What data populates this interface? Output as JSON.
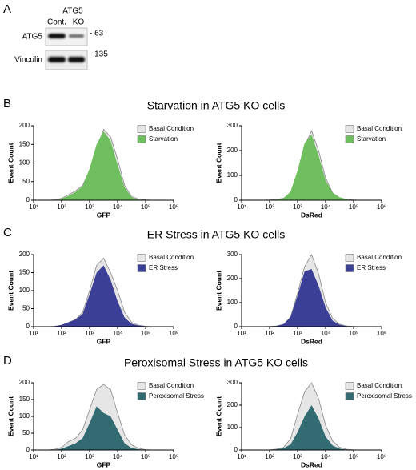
{
  "figure": {
    "panel_a": {
      "label": "A",
      "header": "ATG5",
      "lanes": [
        "Cont.",
        "KO"
      ],
      "rows": [
        "ATG5",
        "Vinculin"
      ],
      "markers": [
        "- 63",
        "- 135"
      ]
    },
    "sections": [
      {
        "label": "B",
        "title": "Starvation in ATG5 KO cells"
      },
      {
        "label": "C",
        "title": "ER Stress in ATG5 KO cells"
      },
      {
        "label": "D",
        "title": "Peroxisomal Stress in ATG5 KO cells"
      }
    ]
  },
  "chart_data": [
    {
      "type": "area",
      "xlabel": "GFP",
      "ylabel": "Event Count",
      "xscale": "log",
      "x": [
        31.6,
        56.2,
        100,
        177.8,
        316.2,
        562.3,
        1000,
        1778.3,
        3162.3,
        5623.4,
        10000,
        17782.8,
        31622.8,
        56234.1,
        100000,
        177827.9,
        316227.8
      ],
      "xlim": [
        10,
        1000000
      ],
      "xticks": [
        {
          "value": 10,
          "label": "10¹"
        },
        {
          "value": 100,
          "label": "10²"
        },
        {
          "value": 1000,
          "label": "10³"
        },
        {
          "value": 10000,
          "label": "10⁴"
        },
        {
          "value": 100000,
          "label": "10⁵"
        },
        {
          "value": 1000000,
          "label": "10⁶"
        }
      ],
      "ylim": [
        0,
        200
      ],
      "yticks": [
        0,
        50,
        100,
        150,
        200
      ],
      "legend": "top-right",
      "series": [
        {
          "name": "Basal Condition",
          "color": "#e6e6e6",
          "values": [
            0,
            1,
            5,
            15,
            25,
            40,
            80,
            140,
            190,
            170,
            110,
            40,
            10,
            3,
            1,
            0,
            0
          ]
        },
        {
          "name": "Starvation",
          "color": "#6fbf5f",
          "values": [
            0,
            1,
            4,
            12,
            22,
            38,
            85,
            150,
            185,
            160,
            95,
            35,
            8,
            2,
            1,
            0,
            0
          ]
        }
      ]
    },
    {
      "type": "area",
      "xlabel": "DsRed",
      "ylabel": "Event Count",
      "xscale": "log",
      "x": [
        31.6,
        56.2,
        100,
        177.8,
        316.2,
        562.3,
        1000,
        1778.3,
        3162.3,
        5623.4,
        10000,
        17782.8,
        31622.8,
        56234.1,
        100000,
        177827.9,
        316227.8
      ],
      "xlim": [
        10,
        1000000
      ],
      "xticks": [
        {
          "value": 10,
          "label": "10¹"
        },
        {
          "value": 100,
          "label": "10²"
        },
        {
          "value": 1000,
          "label": "10³"
        },
        {
          "value": 10000,
          "label": "10⁴"
        },
        {
          "value": 100000,
          "label": "10⁵"
        },
        {
          "value": 1000000,
          "label": "10⁶"
        }
      ],
      "ylim": [
        0,
        300
      ],
      "yticks": [
        0,
        100,
        200,
        300
      ],
      "legend": "top-right",
      "series": [
        {
          "name": "Basal Condition",
          "color": "#e6e6e6",
          "values": [
            0,
            0,
            1,
            3,
            8,
            30,
            110,
            220,
            280,
            200,
            90,
            30,
            10,
            3,
            1,
            0,
            0
          ]
        },
        {
          "name": "Starvation",
          "color": "#6fbf5f",
          "values": [
            0,
            0,
            1,
            3,
            8,
            35,
            120,
            230,
            265,
            180,
            80,
            30,
            12,
            4,
            1,
            0,
            0
          ]
        }
      ]
    },
    {
      "type": "area",
      "xlabel": "GFP",
      "ylabel": "Event Count",
      "xscale": "log",
      "x": [
        31.6,
        56.2,
        100,
        177.8,
        316.2,
        562.3,
        1000,
        1778.3,
        3162.3,
        5623.4,
        10000,
        17782.8,
        31622.8,
        56234.1,
        100000,
        177827.9,
        316227.8
      ],
      "xlim": [
        10,
        1000000
      ],
      "xticks": [
        {
          "value": 10,
          "label": "10¹"
        },
        {
          "value": 100,
          "label": "10²"
        },
        {
          "value": 1000,
          "label": "10³"
        },
        {
          "value": 10000,
          "label": "10⁴"
        },
        {
          "value": 100000,
          "label": "10⁵"
        },
        {
          "value": 1000000,
          "label": "10⁶"
        }
      ],
      "ylim": [
        0,
        200
      ],
      "yticks": [
        0,
        50,
        100,
        150,
        200
      ],
      "legend": "top-right",
      "series": [
        {
          "name": "Basal Condition",
          "color": "#e6e6e6",
          "values": [
            0,
            1,
            4,
            12,
            20,
            40,
            100,
            170,
            190,
            150,
            100,
            40,
            12,
            4,
            1,
            0,
            0
          ]
        },
        {
          "name": "ER Stress",
          "color": "#3b3f95",
          "values": [
            0,
            1,
            5,
            12,
            20,
            35,
            90,
            150,
            170,
            130,
            70,
            25,
            8,
            3,
            1,
            0,
            0
          ]
        }
      ]
    },
    {
      "type": "area",
      "xlabel": "DsRed",
      "ylabel": "Event Count",
      "xscale": "log",
      "x": [
        31.6,
        56.2,
        100,
        177.8,
        316.2,
        562.3,
        1000,
        1778.3,
        3162.3,
        5623.4,
        10000,
        17782.8,
        31622.8,
        56234.1,
        100000,
        177827.9,
        316227.8
      ],
      "xlim": [
        10,
        1000000
      ],
      "xticks": [
        {
          "value": 10,
          "label": "10¹"
        },
        {
          "value": 100,
          "label": "10²"
        },
        {
          "value": 1000,
          "label": "10³"
        },
        {
          "value": 10000,
          "label": "10⁴"
        },
        {
          "value": 100000,
          "label": "10⁵"
        },
        {
          "value": 1000000,
          "label": "10⁶"
        }
      ],
      "ylim": [
        0,
        300
      ],
      "yticks": [
        0,
        100,
        200,
        300
      ],
      "legend": "top-right",
      "series": [
        {
          "name": "Basal Condition",
          "color": "#e6e6e6",
          "values": [
            0,
            0,
            1,
            3,
            10,
            40,
            140,
            250,
            300,
            220,
            100,
            35,
            10,
            3,
            1,
            0,
            0
          ]
        },
        {
          "name": "ER Stress",
          "color": "#3b3f95",
          "values": [
            0,
            0,
            1,
            3,
            10,
            40,
            130,
            230,
            240,
            170,
            80,
            25,
            8,
            2,
            1,
            0,
            0
          ]
        }
      ]
    },
    {
      "type": "area",
      "xlabel": "GFP",
      "ylabel": "Event Count",
      "xscale": "log",
      "x": [
        31.6,
        56.2,
        100,
        177.8,
        316.2,
        562.3,
        1000,
        1778.3,
        3162.3,
        5623.4,
        10000,
        17782.8,
        31622.8,
        56234.1,
        100000,
        177827.9,
        316227.8
      ],
      "xlim": [
        10,
        1000000
      ],
      "xticks": [
        {
          "value": 10,
          "label": "10¹"
        },
        {
          "value": 100,
          "label": "10²"
        },
        {
          "value": 1000,
          "label": "10³"
        },
        {
          "value": 10000,
          "label": "10⁴"
        },
        {
          "value": 100000,
          "label": "10⁵"
        },
        {
          "value": 1000000,
          "label": "10⁶"
        }
      ],
      "ylim": [
        0,
        200
      ],
      "yticks": [
        0,
        50,
        100,
        150,
        200
      ],
      "legend": "top-right",
      "series": [
        {
          "name": "Basal Condition",
          "color": "#e6e6e6",
          "values": [
            0,
            2,
            8,
            25,
            35,
            60,
            120,
            180,
            195,
            180,
            110,
            45,
            15,
            5,
            1,
            0,
            0
          ]
        },
        {
          "name": "Peroxisomal Stress",
          "color": "#336b73",
          "values": [
            0,
            1,
            4,
            12,
            20,
            35,
            80,
            130,
            110,
            100,
            60,
            20,
            6,
            2,
            1,
            0,
            0
          ]
        }
      ]
    },
    {
      "type": "area",
      "xlabel": "DsRed",
      "ylabel": "Event Count",
      "xscale": "log",
      "x": [
        31.6,
        56.2,
        100,
        177.8,
        316.2,
        562.3,
        1000,
        1778.3,
        3162.3,
        5623.4,
        10000,
        17782.8,
        31622.8,
        56234.1,
        100000,
        177827.9,
        316227.8
      ],
      "xlim": [
        10,
        1000000
      ],
      "xticks": [
        {
          "value": 10,
          "label": "10¹"
        },
        {
          "value": 100,
          "label": "10²"
        },
        {
          "value": 1000,
          "label": "10³"
        },
        {
          "value": 10000,
          "label": "10⁴"
        },
        {
          "value": 100000,
          "label": "10⁵"
        },
        {
          "value": 1000000,
          "label": "10⁶"
        }
      ],
      "ylim": [
        0,
        300
      ],
      "yticks": [
        0,
        100,
        200,
        300
      ],
      "legend": "top-right",
      "series": [
        {
          "name": "Basal Condition",
          "color": "#e6e6e6",
          "values": [
            0,
            0,
            1,
            4,
            12,
            50,
            160,
            260,
            300,
            230,
            110,
            40,
            12,
            3,
            1,
            0,
            0
          ]
        },
        {
          "name": "Peroxisomal Stress",
          "color": "#336b73",
          "values": [
            0,
            0,
            1,
            3,
            8,
            25,
            80,
            150,
            200,
            140,
            60,
            20,
            6,
            2,
            0,
            0,
            0
          ]
        }
      ]
    }
  ]
}
